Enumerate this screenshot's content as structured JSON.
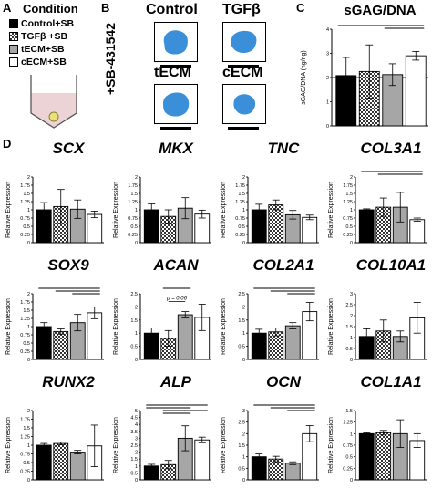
{
  "panels": {
    "a": "A",
    "b": "B",
    "c": "C",
    "d": "D"
  },
  "legend": {
    "title": "Condition",
    "items": [
      {
        "label": "Control+SB",
        "fill": "black"
      },
      {
        "label": "TGFβ +SB",
        "fill": "check"
      },
      {
        "label": "tECM+SB",
        "fill": "gray"
      },
      {
        "label": "cECM+SB",
        "fill": "white"
      }
    ]
  },
  "panel_b": {
    "side_label": "+SB-431542",
    "labels": [
      "Control",
      "TGFβ",
      "tECM",
      "cECM"
    ]
  },
  "colors": {
    "control": "#000000",
    "tgfb_check": "#6a6a6a",
    "tecm": "#a6a6a6",
    "cecm": "#ffffff",
    "pellet_blue": "#3a8fd8",
    "tube_fill": "#ecd3d6",
    "pellet": "#e8e07a"
  },
  "chart_data": [
    {
      "type": "bar",
      "title": "sGAG/DNA",
      "ylabel": "sGAG/DNA (ng/ng)",
      "ylim": [
        0,
        4
      ],
      "yticks": [
        0,
        1,
        2,
        3,
        4
      ],
      "ref": 2,
      "values": [
        2.08,
        2.25,
        2.12,
        2.9
      ],
      "errors": [
        0.75,
        1.1,
        0.45,
        0.18
      ],
      "sig": [
        [
          1,
          4
        ],
        [
          3,
          4
        ]
      ]
    },
    {
      "type": "bar",
      "title": "SCX",
      "ylabel": "Relative Expression",
      "ylim": [
        0,
        2
      ],
      "yticks": [
        0,
        0.25,
        0.5,
        0.75,
        1,
        1.25,
        1.5,
        1.75,
        2
      ],
      "values": [
        1.0,
        1.1,
        1.02,
        0.86
      ],
      "errors": [
        0.22,
        0.52,
        0.28,
        0.1
      ],
      "sig": []
    },
    {
      "type": "bar",
      "title": "MKX",
      "ylabel": "Relative Expression",
      "ylim": [
        0,
        2
      ],
      "yticks": [
        0,
        0.25,
        0.5,
        0.75,
        1,
        1.25,
        1.5,
        1.75,
        2
      ],
      "values": [
        1.0,
        0.8,
        1.05,
        0.87
      ],
      "errors": [
        0.18,
        0.2,
        0.32,
        0.12
      ],
      "sig": []
    },
    {
      "type": "bar",
      "title": "TNC",
      "ylabel": "Relative Expression",
      "ylim": [
        0,
        2
      ],
      "yticks": [
        0,
        0.25,
        0.5,
        0.75,
        1,
        1.25,
        1.5,
        1.75,
        2
      ],
      "values": [
        1.0,
        1.15,
        0.85,
        0.77
      ],
      "errors": [
        0.17,
        0.15,
        0.13,
        0.07
      ],
      "sig": []
    },
    {
      "type": "bar",
      "title": "COL3A1",
      "ylabel": "Relative Expression",
      "ylim": [
        0,
        2
      ],
      "yticks": [
        0,
        0.25,
        0.5,
        0.75,
        1,
        1.25,
        1.5,
        1.75,
        2
      ],
      "values": [
        1.0,
        1.08,
        1.08,
        0.7
      ],
      "errors": [
        0.03,
        0.28,
        0.45,
        0.05
      ],
      "sig": [
        [
          1,
          4
        ],
        [
          2,
          4
        ]
      ]
    },
    {
      "type": "bar",
      "title": "SOX9",
      "ylabel": "Relative Expression",
      "ylim": [
        0,
        2
      ],
      "yticks": [
        0,
        0.25,
        0.5,
        0.75,
        1,
        1.25,
        1.5,
        1.75,
        2
      ],
      "values": [
        1.0,
        0.85,
        1.12,
        1.42
      ],
      "errors": [
        0.12,
        0.08,
        0.25,
        0.18
      ],
      "sig": [
        [
          1,
          4
        ],
        [
          2,
          4
        ],
        [
          3,
          4
        ]
      ]
    },
    {
      "type": "bar",
      "title": "ACAN",
      "ylabel": "Relative Expression",
      "ylim": [
        0,
        2.5
      ],
      "yticks": [
        0,
        0.5,
        1,
        1.5,
        2,
        2.5
      ],
      "values": [
        1.0,
        0.8,
        1.7,
        1.6
      ],
      "errors": [
        0.2,
        0.3,
        0.12,
        0.5
      ],
      "sig": [
        [
          2,
          3
        ]
      ],
      "annotation": "p = 0.06"
    },
    {
      "type": "bar",
      "title": "COL2A1",
      "ylabel": "Relative Expression",
      "ylim": [
        0,
        2.5
      ],
      "yticks": [
        0,
        0.5,
        1,
        1.5,
        2,
        2.5
      ],
      "values": [
        1.0,
        1.05,
        1.28,
        1.82
      ],
      "errors": [
        0.15,
        0.15,
        0.12,
        0.35
      ],
      "sig": [
        [
          1,
          4
        ],
        [
          2,
          4
        ],
        [
          3,
          4
        ]
      ]
    },
    {
      "type": "bar",
      "title": "COL10A1",
      "ylabel": "Relative Expression",
      "ylim": [
        0,
        3
      ],
      "yticks": [
        0,
        0.5,
        1,
        1.5,
        2,
        2.5,
        3
      ],
      "values": [
        1.05,
        1.3,
        1.05,
        1.9
      ],
      "errors": [
        0.35,
        0.5,
        0.25,
        0.7
      ],
      "sig": []
    },
    {
      "type": "bar",
      "title": "RUNX2",
      "ylabel": "Relative Expression",
      "ylim": [
        0,
        2
      ],
      "yticks": [
        0,
        0.25,
        0.5,
        0.75,
        1,
        1.25,
        1.5,
        1.75,
        2
      ],
      "values": [
        1.0,
        1.05,
        0.8,
        0.98
      ],
      "errors": [
        0.05,
        0.04,
        0.05,
        0.6
      ],
      "sig": []
    },
    {
      "type": "bar",
      "title": "ALP",
      "ylabel": "Relative Expression",
      "ylim": [
        0,
        5
      ],
      "yticks": [
        0,
        0.5,
        1,
        1.5,
        2,
        2.5,
        3,
        3.5,
        4,
        4.5,
        5
      ],
      "values": [
        1.0,
        1.1,
        3.0,
        2.88
      ],
      "errors": [
        0.12,
        0.3,
        0.9,
        0.2
      ],
      "sig": [
        [
          1,
          4
        ],
        [
          1,
          3
        ],
        [
          2,
          4
        ],
        [
          2,
          3
        ]
      ]
    },
    {
      "type": "bar",
      "title": "OCN",
      "ylabel": "Relative Expression",
      "ylim": [
        0,
        3
      ],
      "yticks": [
        0,
        0.5,
        1,
        1.5,
        2,
        2.5,
        3
      ],
      "values": [
        1.0,
        0.9,
        0.72,
        2.0
      ],
      "errors": [
        0.12,
        0.12,
        0.06,
        0.35
      ],
      "sig": [
        [
          1,
          4
        ],
        [
          2,
          4
        ],
        [
          3,
          4
        ]
      ]
    },
    {
      "type": "bar",
      "title": "COL1A1",
      "ylabel": "Relative Expression",
      "ylim": [
        0,
        1.5
      ],
      "yticks": [
        0,
        0.25,
        0.5,
        0.75,
        1,
        1.25,
        1.5
      ],
      "values": [
        1.0,
        1.02,
        1.0,
        0.85
      ],
      "errors": [
        0.02,
        0.05,
        0.3,
        0.15
      ],
      "sig": []
    }
  ]
}
